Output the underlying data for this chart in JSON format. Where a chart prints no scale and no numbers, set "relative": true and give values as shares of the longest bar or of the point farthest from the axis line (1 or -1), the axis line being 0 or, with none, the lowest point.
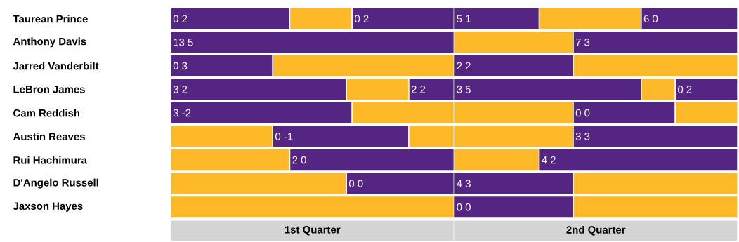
{
  "chart_data": {
    "type": "bar",
    "orientation": "horizontal",
    "stacked": true,
    "relative": true,
    "categories": [
      "Taurean Prince",
      "Anthony Davis",
      "Jarred Vanderbilt",
      "LeBron James",
      "Cam Reddish",
      "Austin Reaves",
      "Rui Hachimura",
      "D'Angelo Russell",
      "Jaxson Hayes"
    ],
    "series": [
      {
        "values": [
          0.21,
          0.5,
          0.18,
          0.31,
          0.32,
          0.18,
          0.21,
          0.31,
          0.5
        ],
        "colors": [
          "#552583",
          "#552583",
          "#552583",
          "#552583",
          "#552583",
          "#fdb927",
          "#fdb927",
          "#fdb927",
          "#fdb927"
        ]
      },
      {
        "values": [
          0.11,
          0.21,
          0.32,
          0.11,
          0.18,
          0.24,
          0.29,
          0.19,
          0.21
        ],
        "colors": [
          "#fdb927",
          "#fdb927",
          "#fdb927",
          "#fdb927",
          "#fdb927",
          "#552583",
          "#552583",
          "#552583",
          "#552583"
        ]
      },
      {
        "values": [
          0.18,
          0.29,
          0.21,
          0.08,
          0.21,
          0.08,
          0.15,
          0.21,
          0.29
        ],
        "colors": [
          "#552583",
          "#552583",
          "#552583",
          "#552583",
          "#fdb927",
          "#fdb927",
          "#fdb927",
          "#552583",
          "#fdb927"
        ]
      },
      {
        "values": [
          0.15,
          null,
          0.29,
          0.33,
          0.18,
          0.21,
          0.35,
          0.29,
          null
        ],
        "colors": [
          "#552583",
          null,
          "#fdb927",
          "#552583",
          "#552583",
          "#fdb927",
          "#552583",
          "#fdb927",
          null
        ]
      },
      {
        "values": [
          0.18,
          null,
          null,
          0.06,
          0.11,
          0.29,
          null,
          null,
          null
        ],
        "colors": [
          "#fdb927",
          null,
          null,
          "#fdb927",
          "#fdb927",
          "#552583",
          null,
          null,
          null
        ]
      },
      {
        "values": [
          0.17,
          null,
          null,
          0.11,
          null,
          null,
          null,
          null,
          null
        ],
        "colors": [
          "#552583",
          null,
          null,
          "#552583",
          null,
          null,
          null,
          null,
          null
        ]
      }
    ],
    "annotations": [
      "1st Quarter",
      "2nd Quarter",
      {
        "text": "0 2",
        "x": 0,
        "y": "Taurean Prince"
      },
      {
        "text": "0 2",
        "x": 0.32,
        "y": "Taurean Prince"
      },
      {
        "text": "5 1",
        "x": 0.5,
        "y": "Taurean Prince"
      },
      {
        "text": "6 0",
        "x": 0.83,
        "y": "Taurean Prince"
      },
      {
        "text": "13 5",
        "x": 0,
        "y": "Anthony Davis"
      },
      {
        "text": "7 3",
        "x": 0.71,
        "y": "Anthony Davis"
      },
      {
        "text": "0 3",
        "x": 0,
        "y": "Jarred Vanderbilt"
      },
      {
        "text": "2 2",
        "x": 0.5,
        "y": "Jarred Vanderbilt"
      },
      {
        "text": "3 2",
        "x": 0,
        "y": "LeBron James"
      },
      {
        "text": "2 2",
        "x": 0.42,
        "y": "LeBron James"
      },
      {
        "text": "3 5",
        "x": 0.5,
        "y": "LeBron James"
      },
      {
        "text": "0 2",
        "x": 0.89,
        "y": "LeBron James"
      },
      {
        "text": "3 -2",
        "x": 0,
        "y": "Cam Reddish"
      },
      {
        "text": "0 0",
        "x": 0.71,
        "y": "Cam Reddish"
      },
      {
        "text": "0 -1",
        "x": 0.18,
        "y": "Austin Reaves"
      },
      {
        "text": "3 3",
        "x": 0.71,
        "y": "Austin Reaves"
      },
      {
        "text": "2 0",
        "x": 0.21,
        "y": "Rui Hachimura"
      },
      {
        "text": "4 2",
        "x": 0.65,
        "y": "Rui Hachimura"
      },
      {
        "text": "0 0",
        "x": 0.31,
        "y": "D'Angelo Russell"
      },
      {
        "text": "4 3",
        "x": 0.5,
        "y": "D'Angelo Russell"
      },
      {
        "text": "0 0",
        "x": 0.5,
        "y": "Jaxson Hayes"
      }
    ]
  }
}
